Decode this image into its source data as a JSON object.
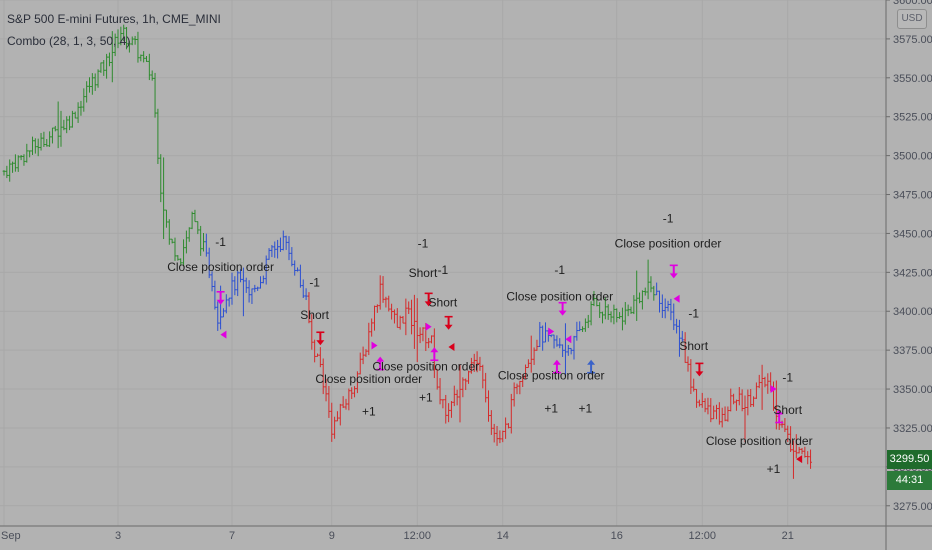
{
  "legend": {
    "symbol": "S&P 500 E-mini Futures, 1h, CME_MINI",
    "indicator": "Combo (28, 1, 3, 50, 4)"
  },
  "currency_button": "USD",
  "last_price": "3299.50",
  "countdown": "44:31",
  "colors": {
    "background": "#b2b2b2",
    "grid": "#a8a8a8",
    "bar_green": "#2e8b2e",
    "bar_blue": "#2b4fd1",
    "bar_red": "#d42a2a",
    "signal_magenta": "#e000e0",
    "signal_red": "#d9001b",
    "signal_blue": "#3a62c8",
    "badge": "#1f6b2c"
  },
  "chart_data": {
    "type": "ohlc",
    "symbol": "S&P 500 E-mini Futures",
    "interval": "1h",
    "ylim": [
      3262,
      3600
    ],
    "y_ticks": [
      3275,
      3300,
      3325,
      3350,
      3375,
      3400,
      3425,
      3450,
      3475,
      3500,
      3525,
      3550,
      3575,
      3600
    ],
    "y_tick_labels": [
      "3275.00",
      "3300.00",
      "3325.00",
      "3350.00",
      "3375.00",
      "3400.00",
      "3425.00",
      "3450.00",
      "3475.00",
      "3500.00",
      "3525.00",
      "3550.00",
      "3575.00",
      "3600.00"
    ],
    "x_ticks": [
      {
        "label": "Sep",
        "bar": 0
      },
      {
        "label": "3",
        "bar": 40
      },
      {
        "label": "7",
        "bar": 80
      },
      {
        "label": "9",
        "bar": 115
      },
      {
        "label": "12:00",
        "bar": 145
      },
      {
        "label": "14",
        "bar": 175
      },
      {
        "label": "16",
        "bar": 215
      },
      {
        "label": "12:00",
        "bar": 245
      },
      {
        "label": "21",
        "bar": 275
      }
    ],
    "bar_count": 284,
    "segments": [
      {
        "color": "green",
        "start": 0,
        "end": 70
      },
      {
        "color": "blue",
        "start": 71,
        "end": 106
      },
      {
        "color": "red",
        "start": 107,
        "end": 187
      },
      {
        "color": "blue",
        "start": 188,
        "end": 202
      },
      {
        "color": "green",
        "start": 203,
        "end": 228
      },
      {
        "color": "blue",
        "start": 229,
        "end": 238
      },
      {
        "color": "red",
        "start": 239,
        "end": 283
      }
    ],
    "anchors": [
      [
        0,
        3490
      ],
      [
        10,
        3505
      ],
      [
        18,
        3515
      ],
      [
        24,
        3525
      ],
      [
        30,
        3545
      ],
      [
        36,
        3560
      ],
      [
        41,
        3580
      ],
      [
        46,
        3570
      ],
      [
        52,
        3550
      ],
      [
        55,
        3480
      ],
      [
        58,
        3445
      ],
      [
        62,
        3435
      ],
      [
        66,
        3460
      ],
      [
        70,
        3440
      ],
      [
        73,
        3420
      ],
      [
        75,
        3395
      ],
      [
        78,
        3410
      ],
      [
        82,
        3420
      ],
      [
        86,
        3410
      ],
      [
        90,
        3420
      ],
      [
        94,
        3440
      ],
      [
        98,
        3445
      ],
      [
        102,
        3430
      ],
      [
        106,
        3405
      ],
      [
        108,
        3380
      ],
      [
        111,
        3365
      ],
      [
        115,
        3325
      ],
      [
        118,
        3335
      ],
      [
        122,
        3350
      ],
      [
        126,
        3370
      ],
      [
        129,
        3395
      ],
      [
        132,
        3415
      ],
      [
        135,
        3405
      ],
      [
        138,
        3390
      ],
      [
        141,
        3400
      ],
      [
        144,
        3390
      ],
      [
        147,
        3385
      ],
      [
        150,
        3380
      ],
      [
        153,
        3340
      ],
      [
        156,
        3335
      ],
      [
        160,
        3350
      ],
      [
        164,
        3370
      ],
      [
        168,
        3360
      ],
      [
        171,
        3325
      ],
      [
        174,
        3315
      ],
      [
        177,
        3330
      ],
      [
        180,
        3355
      ],
      [
        184,
        3370
      ],
      [
        188,
        3385
      ],
      [
        192,
        3380
      ],
      [
        196,
        3375
      ],
      [
        200,
        3380
      ],
      [
        203,
        3390
      ],
      [
        207,
        3405
      ],
      [
        211,
        3400
      ],
      [
        215,
        3395
      ],
      [
        219,
        3400
      ],
      [
        223,
        3410
      ],
      [
        227,
        3415
      ],
      [
        231,
        3405
      ],
      [
        235,
        3395
      ],
      [
        238,
        3380
      ],
      [
        241,
        3355
      ],
      [
        244,
        3340
      ],
      [
        248,
        3335
      ],
      [
        252,
        3330
      ],
      [
        256,
        3345
      ],
      [
        260,
        3340
      ],
      [
        264,
        3350
      ],
      [
        268,
        3355
      ],
      [
        272,
        3330
      ],
      [
        276,
        3315
      ],
      [
        280,
        3310
      ],
      [
        283,
        3300
      ]
    ],
    "annotations": [
      {
        "text": "-1",
        "bar": 76,
        "price": 3442
      },
      {
        "text": "Close position order",
        "bar": 76,
        "price": 3426
      },
      {
        "text": "-1",
        "bar": 109,
        "price": 3416
      },
      {
        "text": "Short",
        "bar": 109,
        "price": 3395
      },
      {
        "text": "Close position order",
        "bar": 128,
        "price": 3354
      },
      {
        "text": "+1",
        "bar": 128,
        "price": 3333
      },
      {
        "text": "-1",
        "bar": 147,
        "price": 3441
      },
      {
        "text": "Short",
        "bar": 147,
        "price": 3422
      },
      {
        "text": "-1",
        "bar": 154,
        "price": 3424
      },
      {
        "text": "Short",
        "bar": 154,
        "price": 3403
      },
      {
        "text": "Close position order",
        "bar": 148,
        "price": 3362
      },
      {
        "text": "+1",
        "bar": 148,
        "price": 3342
      },
      {
        "text": "-1",
        "bar": 195,
        "price": 3424
      },
      {
        "text": "Close position order",
        "bar": 195,
        "price": 3407
      },
      {
        "text": "Close position order",
        "bar": 192,
        "price": 3356
      },
      {
        "text": "+1",
        "bar": 192,
        "price": 3335
      },
      {
        "text": "+1",
        "bar": 204,
        "price": 3335
      },
      {
        "text": "-1",
        "bar": 233,
        "price": 3457
      },
      {
        "text": "Close position order",
        "bar": 233,
        "price": 3441
      },
      {
        "text": "-1",
        "bar": 242,
        "price": 3396
      },
      {
        "text": "Short",
        "bar": 242,
        "price": 3375
      },
      {
        "text": "-1",
        "bar": 275,
        "price": 3355
      },
      {
        "text": "Short",
        "bar": 275,
        "price": 3334
      },
      {
        "text": "Close position order",
        "bar": 265,
        "price": 3314
      },
      {
        "text": "+1",
        "bar": 270,
        "price": 3296
      }
    ],
    "markers": [
      {
        "type": "down",
        "color": "magenta",
        "bar": 76,
        "price": 3408
      },
      {
        "type": "left",
        "color": "magenta",
        "bar": 77,
        "price": 3385
      },
      {
        "type": "down",
        "color": "red",
        "bar": 111,
        "price": 3382
      },
      {
        "type": "right",
        "color": "magenta",
        "bar": 130,
        "price": 3378
      },
      {
        "type": "up",
        "color": "magenta",
        "bar": 132,
        "price": 3367
      },
      {
        "type": "down",
        "color": "red",
        "bar": 149,
        "price": 3407
      },
      {
        "type": "right",
        "color": "magenta",
        "bar": 149,
        "price": 3390
      },
      {
        "type": "up",
        "color": "magenta",
        "bar": 151,
        "price": 3373
      },
      {
        "type": "down",
        "color": "red",
        "bar": 156,
        "price": 3392
      },
      {
        "type": "left",
        "color": "red",
        "bar": 157,
        "price": 3377
      },
      {
        "type": "down",
        "color": "magenta",
        "bar": 196,
        "price": 3401
      },
      {
        "type": "right",
        "color": "magenta",
        "bar": 192,
        "price": 3387
      },
      {
        "type": "up",
        "color": "magenta",
        "bar": 194,
        "price": 3365
      },
      {
        "type": "left",
        "color": "magenta",
        "bar": 198,
        "price": 3382
      },
      {
        "type": "up",
        "color": "blue",
        "bar": 206,
        "price": 3365
      },
      {
        "type": "down",
        "color": "magenta",
        "bar": 235,
        "price": 3425
      },
      {
        "type": "left",
        "color": "magenta",
        "bar": 236,
        "price": 3408
      },
      {
        "type": "down",
        "color": "red",
        "bar": 244,
        "price": 3362
      },
      {
        "type": "right",
        "color": "magenta",
        "bar": 270,
        "price": 3350
      },
      {
        "type": "up",
        "color": "magenta",
        "bar": 272,
        "price": 3333
      },
      {
        "type": "left",
        "color": "red",
        "bar": 279,
        "price": 3305
      }
    ]
  }
}
